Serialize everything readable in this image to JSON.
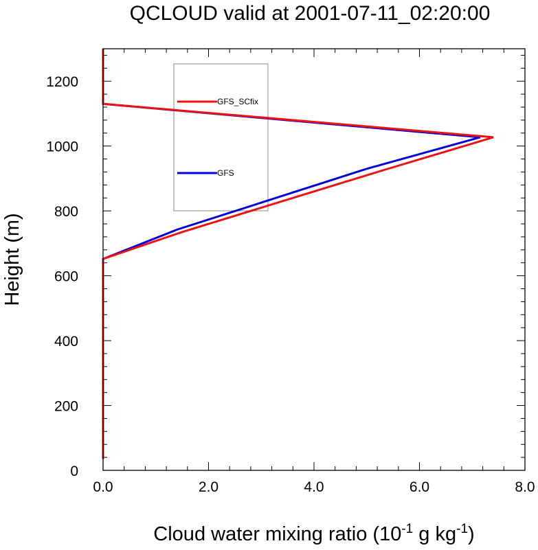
{
  "chart_data": {
    "type": "line",
    "title": "QCLOUD valid at 2001-07-11_02:20:00",
    "xlabel": {
      "main": "Cloud water mixing ratio (10",
      "exp1": "-1",
      "mid": " g kg",
      "exp2": "-1",
      "end": ")"
    },
    "ylabel": "Height (m)",
    "xlim": [
      0,
      8
    ],
    "ylim": [
      0,
      1300
    ],
    "xticks": [
      0,
      2,
      4,
      6,
      8
    ],
    "xtick_labels": [
      "0.0",
      "2.0",
      "4.0",
      "6.0",
      "8.0"
    ],
    "yticks": [
      0,
      200,
      400,
      600,
      800,
      1000,
      1200
    ],
    "ytick_labels": [
      "0",
      "200",
      "400",
      "600",
      "800",
      "1000",
      "1200"
    ],
    "grid": false,
    "legend": {
      "placement": "top-left-inside",
      "box": true
    },
    "series": [
      {
        "name": "GFS",
        "color": "#0000dd",
        "points": [
          [
            0,
            35
          ],
          [
            0,
            652
          ],
          [
            1.4,
            742
          ],
          [
            5.0,
            930
          ],
          [
            7.15,
            1027
          ],
          [
            0,
            1130
          ],
          [
            0,
            1300
          ]
        ]
      },
      {
        "name": "GFS_SCfix",
        "color": "#ee1111",
        "points": [
          [
            0,
            35
          ],
          [
            0,
            652
          ],
          [
            1.5,
            735
          ],
          [
            5.2,
            920
          ],
          [
            7.4,
            1027
          ],
          [
            0,
            1130
          ],
          [
            0,
            1300
          ]
        ]
      }
    ]
  }
}
